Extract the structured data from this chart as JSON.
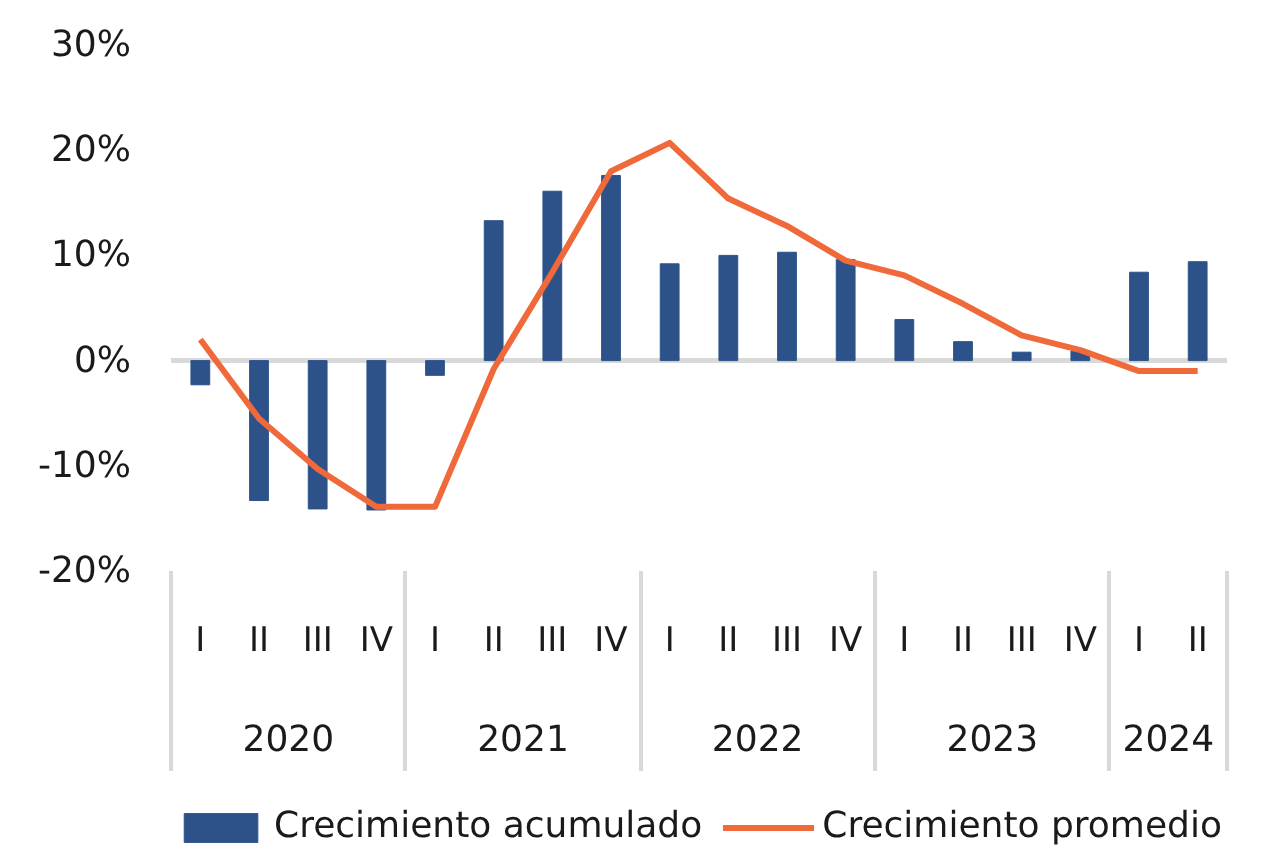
{
  "chart_data": {
    "type": "bar",
    "categories": [
      [
        "2020",
        "I"
      ],
      [
        null,
        "II"
      ],
      [
        null,
        "III"
      ],
      [
        null,
        "IV"
      ],
      [
        "2021",
        "I"
      ],
      [
        null,
        "II"
      ],
      [
        null,
        "III"
      ],
      [
        null,
        "IV"
      ],
      [
        "2022",
        "I"
      ],
      [
        null,
        "II"
      ],
      [
        null,
        "III"
      ],
      [
        null,
        "IV"
      ],
      [
        "2023",
        "I"
      ],
      [
        null,
        "II"
      ],
      [
        null,
        "III"
      ],
      [
        null,
        "IV"
      ],
      [
        "2024",
        "I"
      ],
      [
        null,
        "II"
      ]
    ],
    "series": [
      {
        "name": "Crecimiento acumulado",
        "color": "#2c5289",
        "values": [
          -2.3,
          -13.3,
          -14.1,
          -14.2,
          -1.4,
          13.3,
          16.1,
          17.6,
          9.2,
          10.0,
          10.3,
          9.6,
          3.9,
          1.8,
          0.8,
          0.9,
          8.4,
          9.4
        ]
      },
      {
        "name": "Crecimiento promedio",
        "type": "line",
        "color": "#f0693a",
        "values": [
          2.0,
          -5.5,
          -10.3,
          -13.9,
          -13.9,
          -0.8,
          8.4,
          18.0,
          20.7,
          15.4,
          12.8,
          9.5,
          8.1,
          5.4,
          2.4,
          1.0,
          -1.0,
          -1.0
        ]
      }
    ],
    "ylim": [
      -20,
      30
    ],
    "yticks": [
      {
        "value": -20,
        "label": "-20%"
      },
      {
        "value": -10,
        "label": "-10%"
      },
      {
        "value": 0,
        "label": "0%"
      },
      {
        "value": 10,
        "label": "10%"
      },
      {
        "value": 20,
        "label": "20%"
      },
      {
        "value": 30,
        "label": "30%"
      }
    ],
    "ref_lines": [
      {
        "axis": "y",
        "value": 0,
        "color": "#d9d9d9"
      }
    ],
    "grid": false,
    "legend": "bottom",
    "line_style": "solid",
    "marker": "none"
  }
}
